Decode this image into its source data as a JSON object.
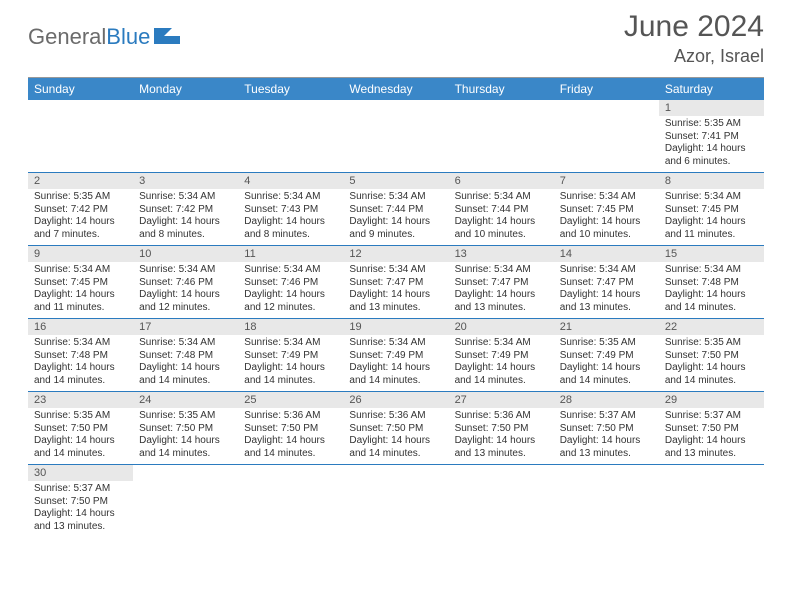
{
  "brand": {
    "gray": "General",
    "blue": "Blue"
  },
  "title": "June 2024",
  "location": "Azor, Israel",
  "colors": {
    "header_bg": "#3a87c8",
    "header_text": "#ffffff",
    "daynum_bg": "#e8e8e8",
    "rule": "#2b7bbf",
    "text": "#333333",
    "title_color": "#555555"
  },
  "dayNames": [
    "Sunday",
    "Monday",
    "Tuesday",
    "Wednesday",
    "Thursday",
    "Friday",
    "Saturday"
  ],
  "weeks": [
    [
      {
        "n": "",
        "lines": []
      },
      {
        "n": "",
        "lines": []
      },
      {
        "n": "",
        "lines": []
      },
      {
        "n": "",
        "lines": []
      },
      {
        "n": "",
        "lines": []
      },
      {
        "n": "",
        "lines": []
      },
      {
        "n": "1",
        "lines": [
          "Sunrise: 5:35 AM",
          "Sunset: 7:41 PM",
          "Daylight: 14 hours",
          "and 6 minutes."
        ]
      }
    ],
    [
      {
        "n": "2",
        "lines": [
          "Sunrise: 5:35 AM",
          "Sunset: 7:42 PM",
          "Daylight: 14 hours",
          "and 7 minutes."
        ]
      },
      {
        "n": "3",
        "lines": [
          "Sunrise: 5:34 AM",
          "Sunset: 7:42 PM",
          "Daylight: 14 hours",
          "and 8 minutes."
        ]
      },
      {
        "n": "4",
        "lines": [
          "Sunrise: 5:34 AM",
          "Sunset: 7:43 PM",
          "Daylight: 14 hours",
          "and 8 minutes."
        ]
      },
      {
        "n": "5",
        "lines": [
          "Sunrise: 5:34 AM",
          "Sunset: 7:44 PM",
          "Daylight: 14 hours",
          "and 9 minutes."
        ]
      },
      {
        "n": "6",
        "lines": [
          "Sunrise: 5:34 AM",
          "Sunset: 7:44 PM",
          "Daylight: 14 hours",
          "and 10 minutes."
        ]
      },
      {
        "n": "7",
        "lines": [
          "Sunrise: 5:34 AM",
          "Sunset: 7:45 PM",
          "Daylight: 14 hours",
          "and 10 minutes."
        ]
      },
      {
        "n": "8",
        "lines": [
          "Sunrise: 5:34 AM",
          "Sunset: 7:45 PM",
          "Daylight: 14 hours",
          "and 11 minutes."
        ]
      }
    ],
    [
      {
        "n": "9",
        "lines": [
          "Sunrise: 5:34 AM",
          "Sunset: 7:45 PM",
          "Daylight: 14 hours",
          "and 11 minutes."
        ]
      },
      {
        "n": "10",
        "lines": [
          "Sunrise: 5:34 AM",
          "Sunset: 7:46 PM",
          "Daylight: 14 hours",
          "and 12 minutes."
        ]
      },
      {
        "n": "11",
        "lines": [
          "Sunrise: 5:34 AM",
          "Sunset: 7:46 PM",
          "Daylight: 14 hours",
          "and 12 minutes."
        ]
      },
      {
        "n": "12",
        "lines": [
          "Sunrise: 5:34 AM",
          "Sunset: 7:47 PM",
          "Daylight: 14 hours",
          "and 13 minutes."
        ]
      },
      {
        "n": "13",
        "lines": [
          "Sunrise: 5:34 AM",
          "Sunset: 7:47 PM",
          "Daylight: 14 hours",
          "and 13 minutes."
        ]
      },
      {
        "n": "14",
        "lines": [
          "Sunrise: 5:34 AM",
          "Sunset: 7:47 PM",
          "Daylight: 14 hours",
          "and 13 minutes."
        ]
      },
      {
        "n": "15",
        "lines": [
          "Sunrise: 5:34 AM",
          "Sunset: 7:48 PM",
          "Daylight: 14 hours",
          "and 14 minutes."
        ]
      }
    ],
    [
      {
        "n": "16",
        "lines": [
          "Sunrise: 5:34 AM",
          "Sunset: 7:48 PM",
          "Daylight: 14 hours",
          "and 14 minutes."
        ]
      },
      {
        "n": "17",
        "lines": [
          "Sunrise: 5:34 AM",
          "Sunset: 7:48 PM",
          "Daylight: 14 hours",
          "and 14 minutes."
        ]
      },
      {
        "n": "18",
        "lines": [
          "Sunrise: 5:34 AM",
          "Sunset: 7:49 PM",
          "Daylight: 14 hours",
          "and 14 minutes."
        ]
      },
      {
        "n": "19",
        "lines": [
          "Sunrise: 5:34 AM",
          "Sunset: 7:49 PM",
          "Daylight: 14 hours",
          "and 14 minutes."
        ]
      },
      {
        "n": "20",
        "lines": [
          "Sunrise: 5:34 AM",
          "Sunset: 7:49 PM",
          "Daylight: 14 hours",
          "and 14 minutes."
        ]
      },
      {
        "n": "21",
        "lines": [
          "Sunrise: 5:35 AM",
          "Sunset: 7:49 PM",
          "Daylight: 14 hours",
          "and 14 minutes."
        ]
      },
      {
        "n": "22",
        "lines": [
          "Sunrise: 5:35 AM",
          "Sunset: 7:50 PM",
          "Daylight: 14 hours",
          "and 14 minutes."
        ]
      }
    ],
    [
      {
        "n": "23",
        "lines": [
          "Sunrise: 5:35 AM",
          "Sunset: 7:50 PM",
          "Daylight: 14 hours",
          "and 14 minutes."
        ]
      },
      {
        "n": "24",
        "lines": [
          "Sunrise: 5:35 AM",
          "Sunset: 7:50 PM",
          "Daylight: 14 hours",
          "and 14 minutes."
        ]
      },
      {
        "n": "25",
        "lines": [
          "Sunrise: 5:36 AM",
          "Sunset: 7:50 PM",
          "Daylight: 14 hours",
          "and 14 minutes."
        ]
      },
      {
        "n": "26",
        "lines": [
          "Sunrise: 5:36 AM",
          "Sunset: 7:50 PM",
          "Daylight: 14 hours",
          "and 14 minutes."
        ]
      },
      {
        "n": "27",
        "lines": [
          "Sunrise: 5:36 AM",
          "Sunset: 7:50 PM",
          "Daylight: 14 hours",
          "and 13 minutes."
        ]
      },
      {
        "n": "28",
        "lines": [
          "Sunrise: 5:37 AM",
          "Sunset: 7:50 PM",
          "Daylight: 14 hours",
          "and 13 minutes."
        ]
      },
      {
        "n": "29",
        "lines": [
          "Sunrise: 5:37 AM",
          "Sunset: 7:50 PM",
          "Daylight: 14 hours",
          "and 13 minutes."
        ]
      }
    ],
    [
      {
        "n": "30",
        "lines": [
          "Sunrise: 5:37 AM",
          "Sunset: 7:50 PM",
          "Daylight: 14 hours",
          "and 13 minutes."
        ]
      },
      {
        "n": "",
        "lines": []
      },
      {
        "n": "",
        "lines": []
      },
      {
        "n": "",
        "lines": []
      },
      {
        "n": "",
        "lines": []
      },
      {
        "n": "",
        "lines": []
      },
      {
        "n": "",
        "lines": []
      }
    ]
  ]
}
